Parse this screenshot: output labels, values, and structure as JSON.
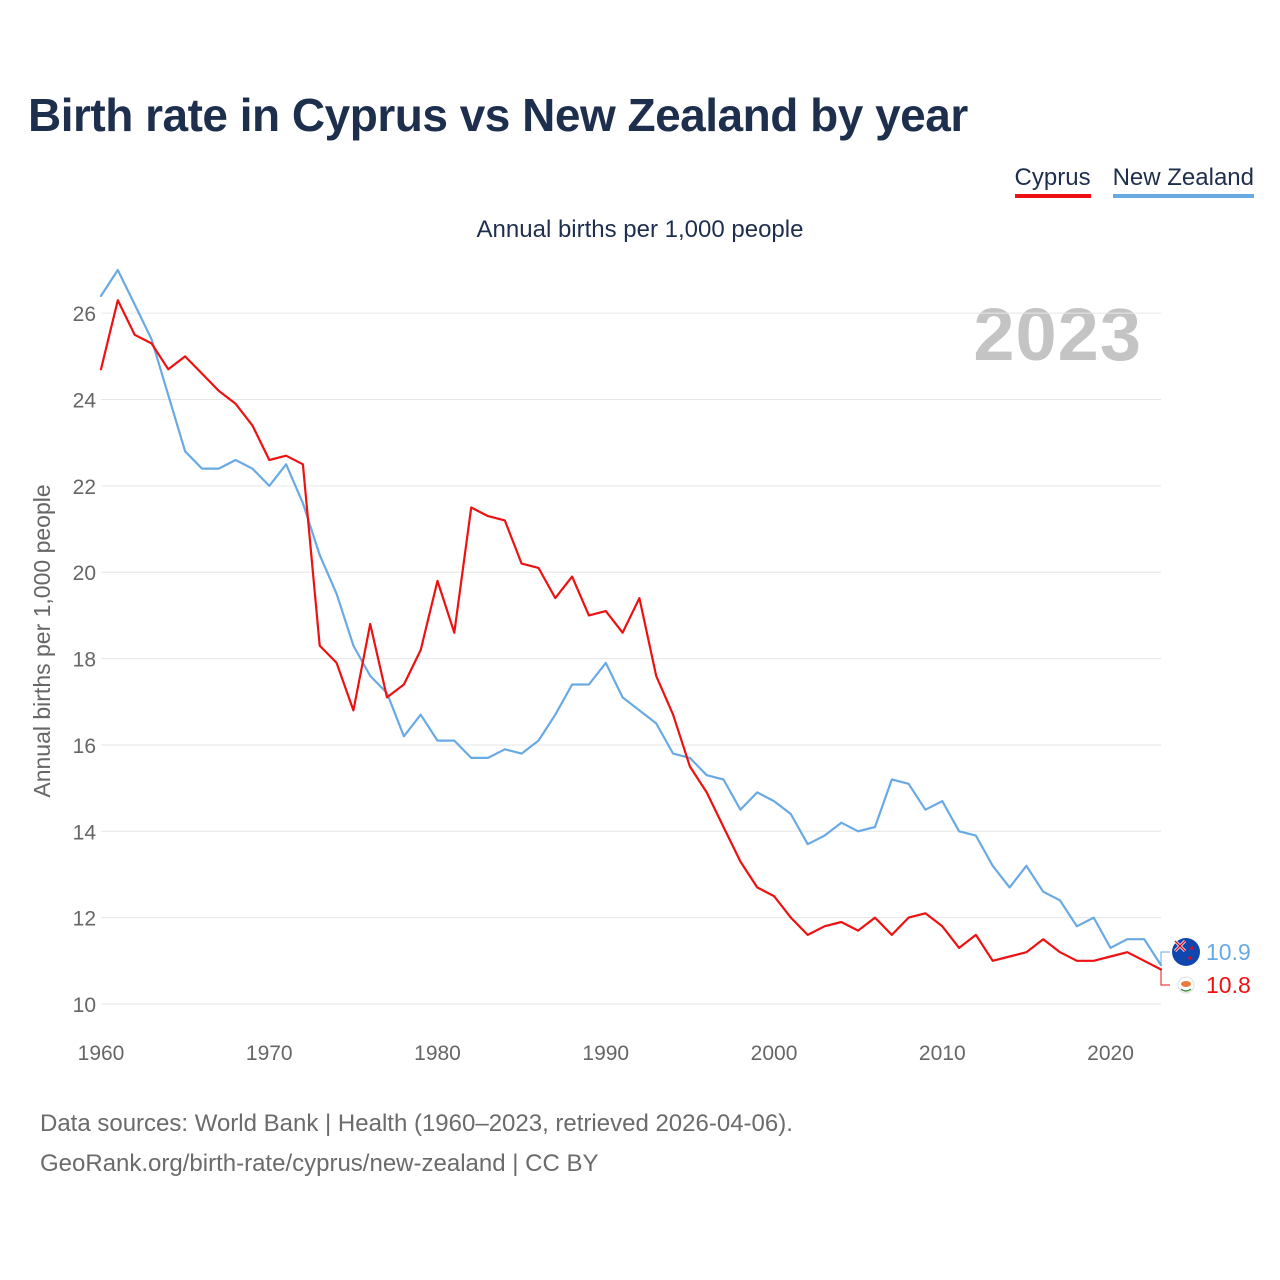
{
  "title": "Birth rate in Cyprus vs New Zealand by year",
  "subtitle": "Annual births per 1,000 people",
  "year_watermark": "2023",
  "legend": [
    {
      "label": "Cyprus",
      "color": "#ee1111"
    },
    {
      "label": "New Zealand",
      "color": "#6aaae4"
    }
  ],
  "footer": {
    "line1": "Data sources: World Bank | Health (1960–2023, retrieved 2026-04-06).",
    "line2": "GeoRank.org/birth-rate/cyprus/new-zealand | CC BY"
  },
  "chart_data": {
    "type": "line",
    "title": "Birth rate in Cyprus vs New Zealand by year",
    "xlabel": "",
    "ylabel": "Annual births per 1,000 people",
    "xlim": [
      1960,
      2023
    ],
    "ylim": [
      10,
      27
    ],
    "yticks": [
      10,
      12,
      14,
      16,
      18,
      20,
      22,
      24,
      26
    ],
    "xticks": [
      1960,
      1970,
      1980,
      1990,
      2000,
      2010,
      2020
    ],
    "grid": true,
    "legend_position": "top-right",
    "x": [
      1960,
      1961,
      1962,
      1963,
      1964,
      1965,
      1966,
      1967,
      1968,
      1969,
      1970,
      1971,
      1972,
      1973,
      1974,
      1975,
      1976,
      1977,
      1978,
      1979,
      1980,
      1981,
      1982,
      1983,
      1984,
      1985,
      1986,
      1987,
      1988,
      1989,
      1990,
      1991,
      1992,
      1993,
      1994,
      1995,
      1996,
      1997,
      1998,
      1999,
      2000,
      2001,
      2002,
      2003,
      2004,
      2005,
      2006,
      2007,
      2008,
      2009,
      2010,
      2011,
      2012,
      2013,
      2014,
      2015,
      2016,
      2017,
      2018,
      2019,
      2020,
      2021,
      2022,
      2023
    ],
    "series": [
      {
        "name": "Cyprus",
        "color": "#ee1111",
        "end_label": "10.8",
        "values": [
          24.7,
          26.3,
          25.5,
          25.3,
          24.7,
          25.0,
          24.6,
          24.2,
          23.9,
          23.4,
          22.6,
          22.7,
          22.5,
          18.3,
          17.9,
          16.8,
          18.8,
          17.1,
          17.4,
          18.2,
          19.8,
          18.6,
          21.5,
          21.3,
          21.2,
          20.2,
          20.1,
          19.4,
          19.9,
          19.0,
          19.1,
          18.6,
          19.4,
          17.6,
          16.7,
          15.5,
          14.9,
          14.1,
          13.3,
          12.7,
          12.5,
          12.0,
          11.6,
          11.8,
          11.9,
          11.7,
          12.0,
          11.6,
          12.0,
          12.1,
          11.8,
          11.3,
          11.6,
          11.0,
          11.1,
          11.2,
          11.5,
          11.2,
          11.0,
          11.0,
          11.1,
          11.2,
          11.0,
          10.8
        ]
      },
      {
        "name": "New Zealand",
        "color": "#6aaae4",
        "end_label": "10.9",
        "values": [
          26.4,
          27.0,
          26.2,
          25.4,
          24.1,
          22.8,
          22.4,
          22.4,
          22.6,
          22.4,
          22.0,
          22.5,
          21.6,
          20.4,
          19.5,
          18.3,
          17.6,
          17.2,
          16.2,
          16.7,
          16.1,
          16.1,
          15.7,
          15.7,
          15.9,
          15.8,
          16.1,
          16.7,
          17.4,
          17.4,
          17.9,
          17.1,
          16.8,
          16.5,
          15.8,
          15.7,
          15.3,
          15.2,
          14.5,
          14.9,
          14.7,
          14.4,
          13.7,
          13.9,
          14.2,
          14.0,
          14.1,
          15.2,
          15.1,
          14.5,
          14.7,
          14.0,
          13.9,
          13.2,
          12.7,
          13.2,
          12.6,
          12.4,
          11.8,
          12.0,
          11.3,
          11.5,
          11.5,
          10.9
        ]
      }
    ]
  }
}
